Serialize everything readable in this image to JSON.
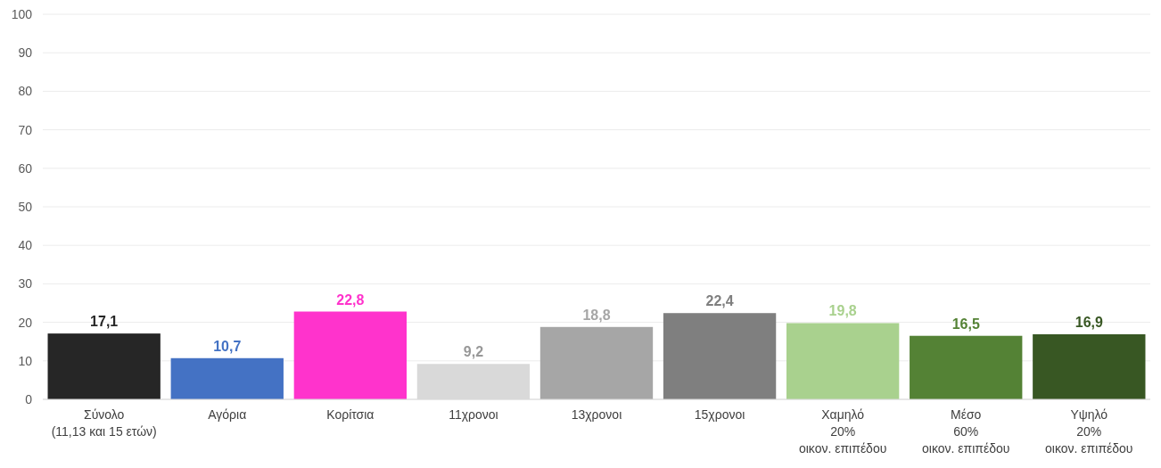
{
  "chart_data": {
    "type": "bar",
    "categories": [
      "Σύνολο\n(11,13 και 15 ετών)",
      "Αγόρια",
      "Κορίτσια",
      "11χρονοι",
      "13χρονοι",
      "15χρονοι",
      "Χαμηλό\n20%\nοικον. επιπέδου",
      "Μέσο\n60%\nοικον. επιπέδου",
      "Υψηλό\n20%\nοικον. επιπέδου"
    ],
    "values": [
      17.1,
      10.7,
      22.8,
      9.2,
      18.8,
      22.4,
      19.8,
      16.5,
      16.9
    ],
    "value_labels": [
      "17,1",
      "10,7",
      "22,8",
      "9,2",
      "18,8",
      "22,4",
      "19,8",
      "16,5",
      "16,9"
    ],
    "colors": [
      "#262626",
      "#4472c4",
      "#ff33cc",
      "#d9d9d9",
      "#a6a6a6",
      "#7f7f7f",
      "#a9d18e",
      "#548235",
      "#385723"
    ],
    "ylim": [
      0,
      100
    ],
    "yticks": [
      0,
      10,
      20,
      30,
      40,
      50,
      60,
      70,
      80,
      90,
      100
    ],
    "grid": "y"
  }
}
